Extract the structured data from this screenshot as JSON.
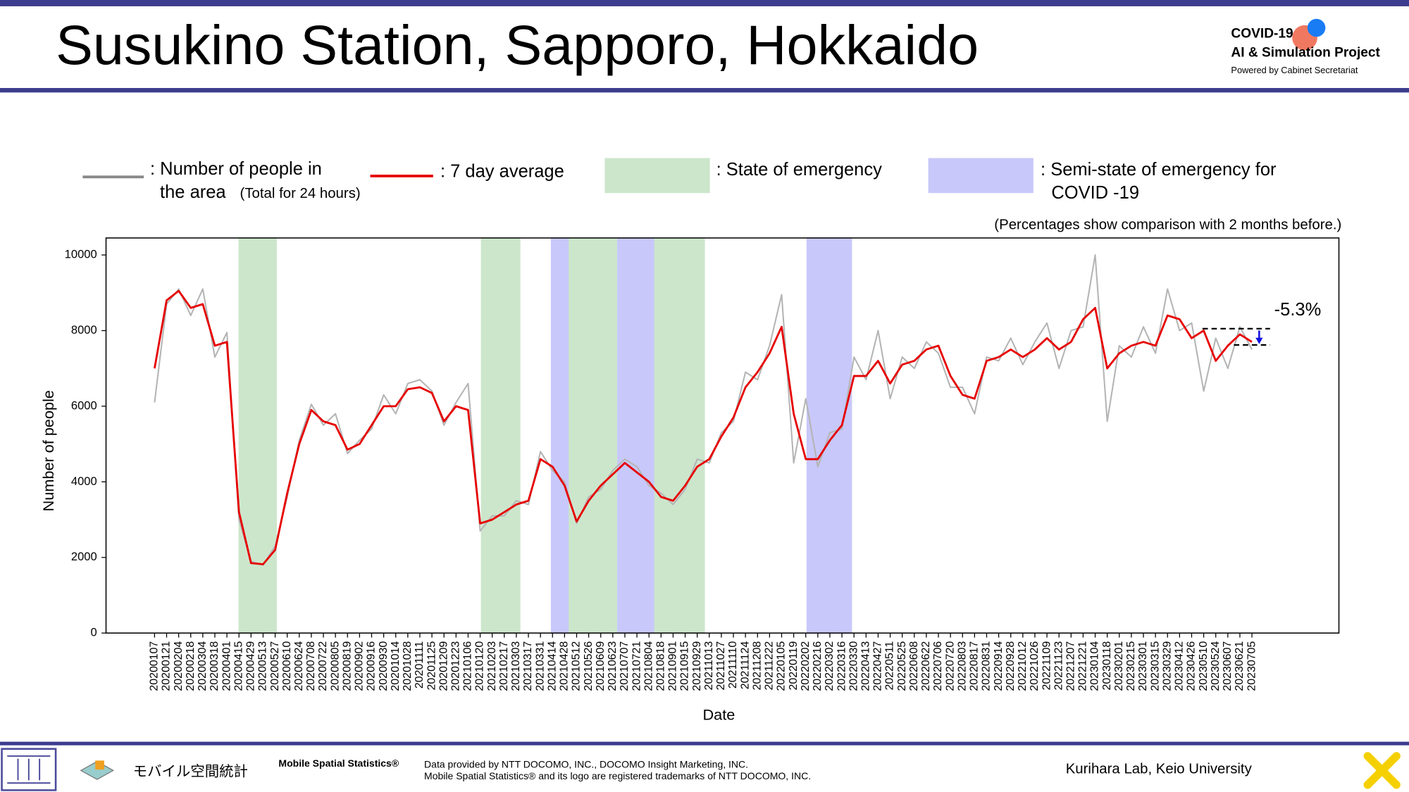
{
  "header": {
    "title": "Susukino Station, Sapporo, Hokkaido",
    "logo": {
      "line1": "COVID-19",
      "line2": "AI & Simulation Project",
      "line3": "Powered by Cabinet Secretariat"
    }
  },
  "chart_data": {
    "type": "line",
    "note": "(Percentages show comparison with 2 months before.)",
    "x_label": "Date",
    "y_label": "Number of people",
    "legend": [
      {
        "lines": [
          ": Number of people in",
          "the area"
        ],
        "note": "(Total for 24 hours)"
      },
      {
        "lines": [
          ": 7 day average"
        ]
      },
      {
        "lines": [
          ": State of emergency"
        ]
      },
      {
        "lines": [
          ": Semi-state of emergency for",
          "COVID -19"
        ]
      }
    ],
    "categories": [
      "20200107",
      "20200121",
      "20200204",
      "20200218",
      "20200304",
      "20200318",
      "20200401",
      "20200415",
      "20200429",
      "20200513",
      "20200527",
      "20200610",
      "20200624",
      "20200708",
      "20200722",
      "20200805",
      "20200819",
      "20200902",
      "20200916",
      "20200930",
      "20201014",
      "20201028",
      "20201111",
      "20201125",
      "20201209",
      "20201223",
      "20210106",
      "20210120",
      "20210203",
      "20210217",
      "20210303",
      "20210317",
      "20210331",
      "20210414",
      "20210428",
      "20210512",
      "20210526",
      "20210609",
      "20210623",
      "20210707",
      "20210721",
      "20210804",
      "20210818",
      "20210901",
      "20210915",
      "20210929",
      "20211013",
      "20211027",
      "20211110",
      "20211124",
      "20211208",
      "20211222",
      "20220105",
      "20220119",
      "20220202",
      "20220216",
      "20220302",
      "20220316",
      "20220330",
      "20220413",
      "20220427",
      "20220511",
      "20220525",
      "20220608",
      "20220622",
      "20220706",
      "20220720",
      "20220803",
      "20220817",
      "20220831",
      "20220914",
      "20220928",
      "20221012",
      "20221026",
      "20221109",
      "20221123",
      "20221207",
      "20221221",
      "20230104",
      "20230118",
      "20230201",
      "20230215",
      "20230301",
      "20230315",
      "20230329",
      "20230412",
      "20230426",
      "20230510",
      "20230524",
      "20230607",
      "20230621",
      "20230705"
    ],
    "series": [
      {
        "color": "#b4b4b4",
        "values": [
          6100,
          8700,
          9100,
          8400,
          9100,
          7300,
          7950,
          3000,
          1900,
          1800,
          2300,
          3600,
          5100,
          6050,
          5500,
          5800,
          4750,
          5100,
          5400,
          6300,
          5800,
          6600,
          6700,
          6400,
          5500,
          6100,
          6600,
          2700,
          3100,
          3100,
          3500,
          3400,
          4800,
          4300,
          4000,
          2900,
          3600,
          3800,
          4300,
          4600,
          4400,
          3900,
          3700,
          3400,
          3800,
          4600,
          4500,
          5300,
          5600,
          6900,
          6700,
          7600,
          8950,
          4500,
          6200,
          4400,
          5300,
          5400,
          7300,
          6700,
          8000,
          6200,
          7300,
          7000,
          7700,
          7400,
          6500,
          6500,
          5800,
          7300,
          7200,
          7800,
          7100,
          7700,
          8200,
          7000,
          8000,
          8100,
          10000,
          5600,
          7600,
          7300,
          8100,
          7400,
          9100,
          8000,
          8200,
          6400,
          7800,
          7000,
          8100,
          7500
        ]
      },
      {
        "color": "#e60000",
        "values": [
          7000,
          8800,
          9050,
          8600,
          8700,
          7600,
          7700,
          3200,
          1850,
          1820,
          2200,
          3700,
          5000,
          5900,
          5600,
          5500,
          4850,
          5000,
          5500,
          6000,
          6000,
          6450,
          6500,
          6350,
          5600,
          6000,
          5900,
          2900,
          3000,
          3200,
          3400,
          3500,
          4600,
          4400,
          3900,
          2950,
          3500,
          3900,
          4200,
          4500,
          4250,
          4000,
          3600,
          3500,
          3900,
          4400,
          4600,
          5200,
          5700,
          6500,
          6900,
          7400,
          8100,
          5800,
          4600,
          4600,
          5100,
          5500,
          6800,
          6800,
          7200,
          6600,
          7100,
          7200,
          7500,
          7600,
          6800,
          6300,
          6200,
          7200,
          7300,
          7500,
          7300,
          7500,
          7800,
          7500,
          7700,
          8300,
          8600,
          7000,
          7400,
          7600,
          7700,
          7600,
          8400,
          8300,
          7800,
          8000,
          7200,
          7600,
          7900,
          7700
        ]
      }
    ],
    "emergency_color": "#cce6cc",
    "semi_emergency_color": "#c8c8fa",
    "emergency_periods": [
      [
        7.0,
        10.1
      ],
      [
        27.1,
        30.3
      ],
      [
        34.3,
        38.4
      ],
      [
        41.4,
        45.6
      ]
    ],
    "semi_emergency_periods": [
      [
        32.9,
        34.3
      ],
      [
        38.4,
        41.4
      ],
      [
        54.1,
        57.8
      ]
    ],
    "annotation": {
      "label": "-5.3%",
      "from_value": 8050,
      "to_value": 7620
    },
    "ylim": [
      0,
      10450
    ],
    "yticks": [
      0,
      2000,
      4000,
      6000,
      8000,
      10000
    ]
  },
  "footer": {
    "brand_jp": "モバイル空間統計",
    "brand": "Mobile Spatial Statistics®",
    "credit1": "Data provided by NTT DOCOMO, INC., DOCOMO Insight Marketing, INC.",
    "credit2": "Mobile Spatial Statistics® and its logo are registered trademarks of NTT DOCOMO, INC.",
    "lab": "Kurihara Lab, Keio University"
  }
}
